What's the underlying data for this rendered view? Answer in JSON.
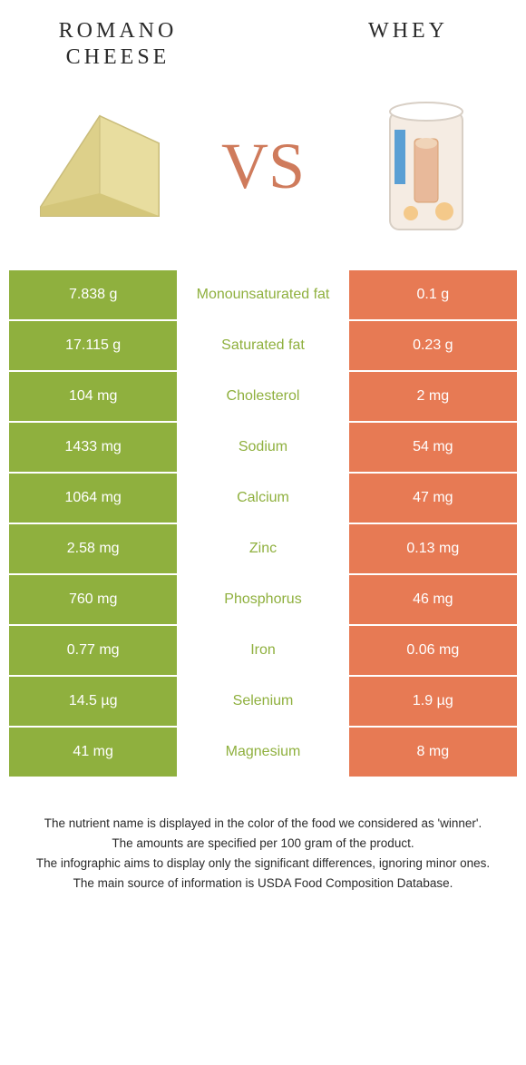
{
  "colors": {
    "left": "#8fb03e",
    "right": "#e77a54",
    "label_left_win": "#8fb03e",
    "label_right_win": "#e77a54",
    "background": "#ffffff"
  },
  "foods": {
    "left": {
      "title": "Romano cheese"
    },
    "right": {
      "title": "Whey"
    }
  },
  "vs": "vs",
  "rows": [
    {
      "left": "7.838 g",
      "label": "Monounsaturated fat",
      "winner": "left",
      "right": "0.1 g"
    },
    {
      "left": "17.115 g",
      "label": "Saturated fat",
      "winner": "left",
      "right": "0.23 g"
    },
    {
      "left": "104 mg",
      "label": "Cholesterol",
      "winner": "left",
      "right": "2 mg"
    },
    {
      "left": "1433 mg",
      "label": "Sodium",
      "winner": "left",
      "right": "54 mg"
    },
    {
      "left": "1064 mg",
      "label": "Calcium",
      "winner": "left",
      "right": "47 mg"
    },
    {
      "left": "2.58 mg",
      "label": "Zinc",
      "winner": "left",
      "right": "0.13 mg"
    },
    {
      "left": "760 mg",
      "label": "Phosphorus",
      "winner": "left",
      "right": "46 mg"
    },
    {
      "left": "0.77 mg",
      "label": "Iron",
      "winner": "left",
      "right": "0.06 mg"
    },
    {
      "left": "14.5 µg",
      "label": "Selenium",
      "winner": "left",
      "right": "1.9 µg"
    },
    {
      "left": "41 mg",
      "label": "Magnesium",
      "winner": "left",
      "right": "8 mg"
    }
  ],
  "notes": [
    "The nutrient name is displayed in the color of the food we considered as 'winner'.",
    "The amounts are specified per 100 gram of the product.",
    "The infographic aims to display only the significant differences, ignoring minor ones.",
    "The main source of information is USDA Food Composition Database."
  ]
}
